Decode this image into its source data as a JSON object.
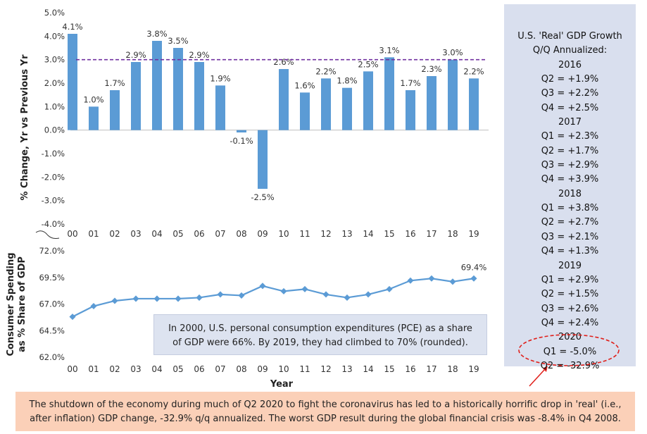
{
  "chart_data": [
    {
      "type": "bar",
      "ylabel": "% Change, Yr vs Previous Yr",
      "ylim": [
        -4.0,
        5.0
      ],
      "yticks": [
        "5.0%",
        "4.0%",
        "3.0%",
        "2.0%",
        "1.0%",
        "0.0%",
        "-1.0%",
        "-2.0%",
        "-3.0%",
        "-4.0%"
      ],
      "categories": [
        "00",
        "01",
        "02",
        "03",
        "04",
        "05",
        "06",
        "07",
        "08",
        "09",
        "10",
        "11",
        "12",
        "13",
        "14",
        "15",
        "16",
        "17",
        "18",
        "19"
      ],
      "values": [
        4.1,
        1.0,
        1.7,
        2.9,
        3.8,
        3.5,
        2.9,
        1.9,
        -0.1,
        -2.5,
        2.6,
        1.6,
        2.2,
        1.8,
        2.5,
        3.1,
        1.7,
        2.3,
        3.0,
        2.2
      ],
      "data_labels": [
        "4.1%",
        "1.0%",
        "1.7%",
        "2.9%",
        "3.8%",
        "3.5%",
        "2.9%",
        "1.9%",
        "-0.1%",
        "-2.5%",
        "2.6%",
        "1.6%",
        "2.2%",
        "1.8%",
        "2.5%",
        "3.1%",
        "1.7%",
        "2.3%",
        "3.0%",
        "2.2%"
      ],
      "reference_line": 3.0,
      "bar_color": "#5b9bd5",
      "reference_line_color": "#7030a0"
    },
    {
      "type": "line",
      "ylabel": "Consumer Spending as % Share of GDP",
      "xlabel": "Year",
      "ylim": [
        62.0,
        72.0
      ],
      "yticks": [
        "72.0%",
        "69.5%",
        "67.0%",
        "64.5%",
        "62.0%"
      ],
      "categories": [
        "00",
        "01",
        "02",
        "03",
        "04",
        "05",
        "06",
        "07",
        "08",
        "09",
        "10",
        "11",
        "12",
        "13",
        "14",
        "15",
        "16",
        "17",
        "18",
        "19"
      ],
      "values": [
        65.8,
        66.8,
        67.3,
        67.5,
        67.5,
        67.5,
        67.6,
        67.9,
        67.8,
        68.7,
        68.2,
        68.4,
        67.9,
        67.6,
        67.9,
        68.4,
        69.2,
        69.4,
        69.1,
        69.4
      ],
      "end_label": "69.4%",
      "line_color": "#5b9bd5"
    }
  ],
  "gdp_box": {
    "title1": "U.S. 'Real' GDP Growth",
    "title2": "Q/Q Annualized:",
    "lines": [
      "2016",
      "Q2 = +1.9%",
      "Q3 = +2.2%",
      "Q4 = +2.5%",
      "2017",
      "Q1 = +2.3%",
      "Q2 = +1.7%",
      "Q3 = +2.9%",
      "Q4 = +3.9%",
      "2018",
      "Q1 = +3.8%",
      "Q2 = +2.7%",
      "Q3 = +2.1%",
      "Q4 = +1.3%",
      "2019",
      "Q1 = +2.9%",
      "Q2 = +1.5%",
      "Q3 = +2.6%",
      "Q4 = +2.4%",
      "2020",
      "Q1 = -5.0%",
      "Q2 = -32.9%"
    ]
  },
  "pce_note": "In 2000, U.S. personal consumption expenditures (PCE) as a share of GDP were 66%. By 2019, they had climbed to 70% (rounded).",
  "bottom_note": "The shutdown of the economy during much of Q2 2020 to fight the coronavirus has led to a historically horrific drop in 'real' (i.e., after inflation) GDP change, -32.9% q/q annualized. The worst GDP result during the global financial crisis was -8.4% in Q4 2008.",
  "colors": {
    "side_box_bg": "#d9dfee",
    "highlight_ellipse": "#e0201b",
    "bottom_note_bg": "#fbd0b8"
  }
}
